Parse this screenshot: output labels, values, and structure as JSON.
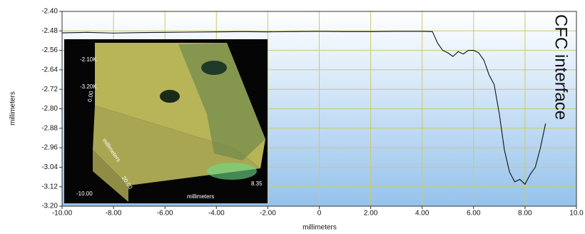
{
  "chart_data": {
    "type": "line",
    "x_label": "millimeters",
    "y_label": "millimeters",
    "x": [
      -10,
      -9,
      -8,
      -7,
      -6,
      -5,
      -4,
      -3,
      -2,
      -1,
      0,
      1,
      2,
      3,
      4,
      4.4,
      4.6,
      4.8,
      5.0,
      5.2,
      5.4,
      5.6,
      5.8,
      6.0,
      6.2,
      6.4,
      6.6,
      6.8,
      7.0,
      7.2,
      7.4,
      7.6,
      7.8,
      8.0,
      8.2,
      8.4,
      8.6,
      8.8
    ],
    "values": [
      -2.488,
      -2.486,
      -2.489,
      -2.487,
      -2.486,
      -2.485,
      -2.484,
      -2.483,
      -2.484,
      -2.483,
      -2.482,
      -2.483,
      -2.483,
      -2.482,
      -2.482,
      -2.483,
      -2.53,
      -2.56,
      -2.57,
      -2.585,
      -2.565,
      -2.575,
      -2.56,
      -2.56,
      -2.57,
      -2.6,
      -2.66,
      -2.7,
      -2.82,
      -2.97,
      -3.06,
      -3.1,
      -3.09,
      -3.11,
      -3.07,
      -3.04,
      -2.96,
      -2.86
    ],
    "color": "#111111",
    "xlim": [
      -10,
      10
    ],
    "ylim": [
      -3.2,
      -2.4
    ],
    "xticks": [
      {
        "value": -10,
        "label": "-10.00"
      },
      {
        "value": -8,
        "label": "-8.00"
      },
      {
        "value": -6,
        "label": "-6.00"
      },
      {
        "value": -4,
        "label": "-4.00"
      },
      {
        "value": -2,
        "label": "-2.00"
      },
      {
        "value": 0,
        "label": "0"
      },
      {
        "value": 2,
        "label": "2.00"
      },
      {
        "value": 4,
        "label": "4.00"
      },
      {
        "value": 6,
        "label": "6.00"
      },
      {
        "value": 8,
        "label": "8.00"
      },
      {
        "value": 10,
        "label": "10.0"
      }
    ],
    "yticks": [
      {
        "value": -2.4,
        "label": "-2.40"
      },
      {
        "value": -2.48,
        "label": "-2.48"
      },
      {
        "value": -2.56,
        "label": "-2.56"
      },
      {
        "value": -2.64,
        "label": "-2.64"
      },
      {
        "value": -2.72,
        "label": "-2.72"
      },
      {
        "value": -2.8,
        "label": "-2.80"
      },
      {
        "value": -2.88,
        "label": "-2.88"
      },
      {
        "value": -2.96,
        "label": "-2.96"
      },
      {
        "value": -3.04,
        "label": "-3.04"
      },
      {
        "value": -3.12,
        "label": "-3.12"
      },
      {
        "value": -3.2,
        "label": "-3.20"
      }
    ],
    "grid": true,
    "grid_color": "#c9cb6a",
    "annotation": "CFC interface",
    "inset": {
      "labels": [
        "-2.10K",
        "-3.20K",
        "0.00",
        "millimeters",
        "20.00",
        "-10.00",
        "8.35",
        "millimeters"
      ]
    }
  }
}
